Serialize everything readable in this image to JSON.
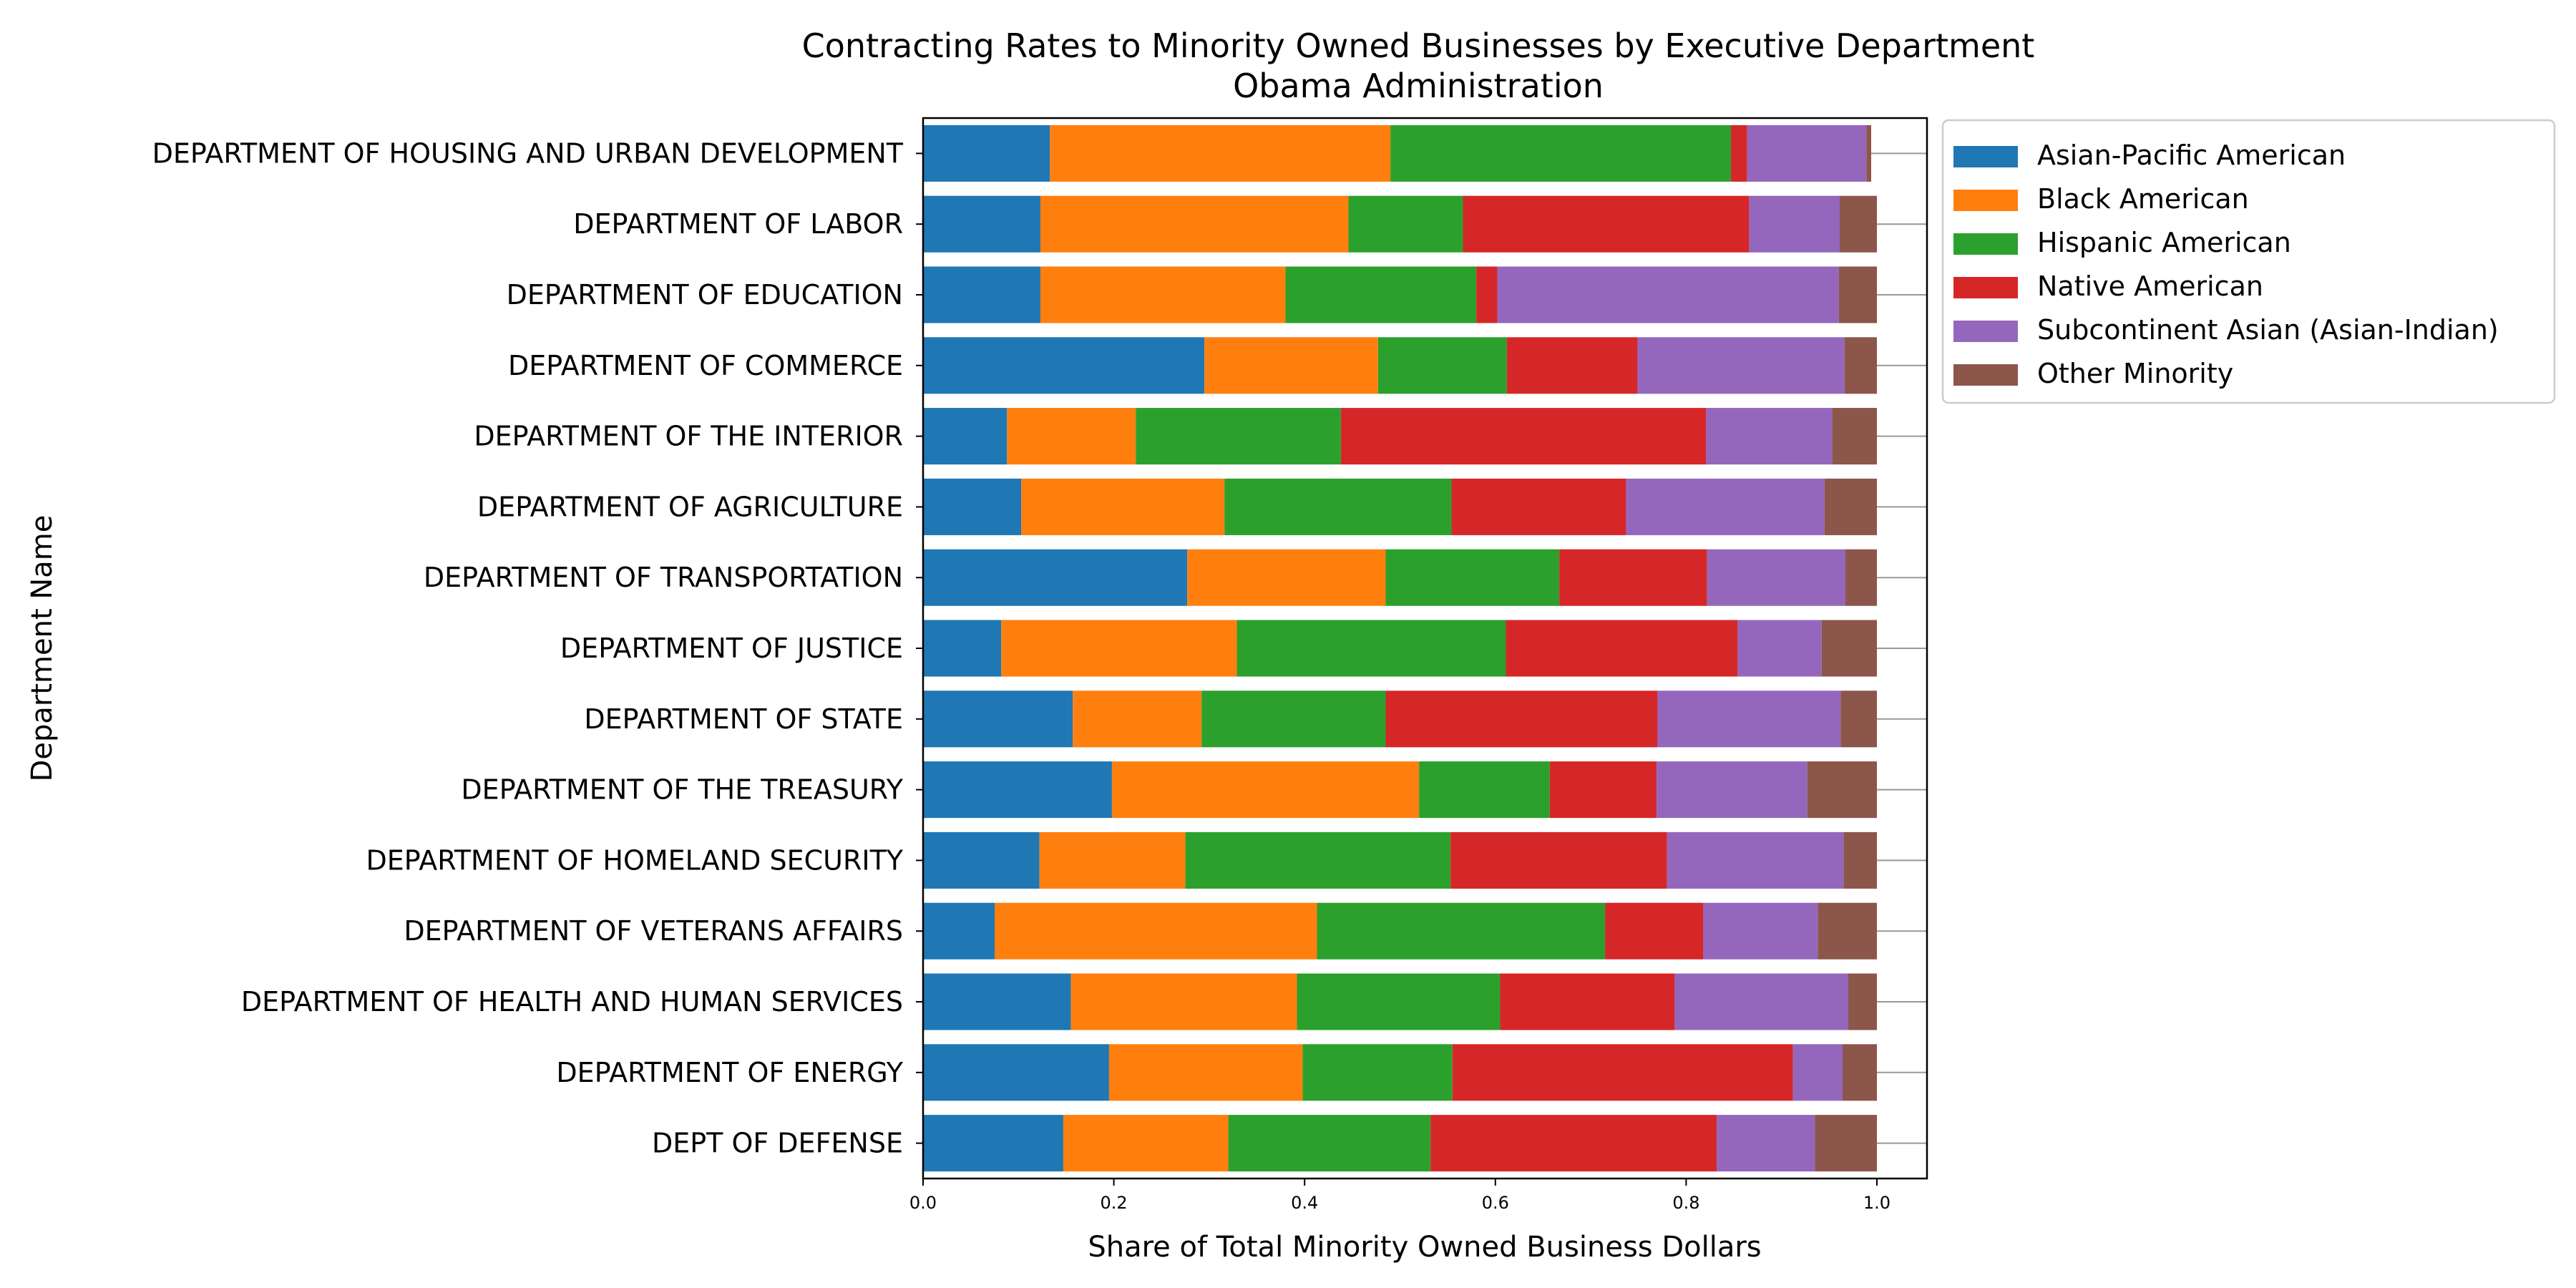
{
  "chart_data": {
    "type": "bar",
    "orientation": "horizontal",
    "stacked": true,
    "title": "Contracting Rates to Minority Owned Businesses by Executive Department",
    "subtitle": "Obama Administration",
    "xlabel": "Share of Total Minority Owned Business Dollars",
    "ylabel": "Department Name",
    "xlim": [
      0,
      1.05
    ],
    "xticks": [
      "0.0",
      "0.2",
      "0.4",
      "0.6",
      "0.8",
      "1.0"
    ],
    "grid": false,
    "legend_position": "outside-top-right",
    "categories": [
      "DEPARTMENT OF HOUSING AND URBAN DEVELOPMENT",
      "DEPARTMENT OF LABOR",
      "DEPARTMENT OF EDUCATION",
      "DEPARTMENT OF COMMERCE",
      "DEPARTMENT OF THE INTERIOR ",
      "DEPARTMENT OF AGRICULTURE",
      "DEPARTMENT OF TRANSPORTATION",
      "DEPARTMENT OF JUSTICE",
      "DEPARTMENT OF STATE",
      "DEPARTMENT OF THE TREASURY",
      "DEPARTMENT OF HOMELAND SECURITY ",
      "DEPARTMENT OF VETERANS AFFAIRS",
      "DEPARTMENT OF HEALTH AND HUMAN SERVICES ",
      "DEPARTMENT OF ENERGY",
      "DEPT OF DEFENSE"
    ],
    "series": [
      {
        "name": "Asian-Pacific American",
        "color": "#1f77b4",
        "values": [
          0.133,
          0.123,
          0.123,
          0.295,
          0.088,
          0.103,
          0.277,
          0.082,
          0.157,
          0.198,
          0.122,
          0.075,
          0.155,
          0.195,
          0.147
        ]
      },
      {
        "name": "Black American",
        "color": "#ff7f0e",
        "values": [
          0.357,
          0.323,
          0.257,
          0.182,
          0.135,
          0.213,
          0.208,
          0.247,
          0.135,
          0.322,
          0.153,
          0.338,
          0.237,
          0.203,
          0.173
        ]
      },
      {
        "name": "Hispanic American",
        "color": "#2ca02c",
        "values": [
          0.357,
          0.12,
          0.2,
          0.135,
          0.215,
          0.238,
          0.182,
          0.282,
          0.193,
          0.137,
          0.278,
          0.302,
          0.213,
          0.157,
          0.212
        ]
      },
      {
        "name": "Native American",
        "color": "#d62728",
        "values": [
          0.017,
          0.3,
          0.022,
          0.137,
          0.383,
          0.183,
          0.155,
          0.243,
          0.285,
          0.112,
          0.227,
          0.103,
          0.183,
          0.357,
          0.3
        ]
      },
      {
        "name": "Subcontinent Asian (Asian-Indian)",
        "color": "#9467bd",
        "values": [
          0.125,
          0.095,
          0.358,
          0.217,
          0.132,
          0.208,
          0.145,
          0.088,
          0.192,
          0.158,
          0.185,
          0.12,
          0.182,
          0.052,
          0.103
        ]
      },
      {
        "name": "Other Minority",
        "color": "#8c564b",
        "values": [
          0.005,
          0.039,
          0.04,
          0.034,
          0.047,
          0.055,
          0.033,
          0.058,
          0.038,
          0.073,
          0.035,
          0.062,
          0.03,
          0.036,
          0.065
        ]
      }
    ]
  }
}
